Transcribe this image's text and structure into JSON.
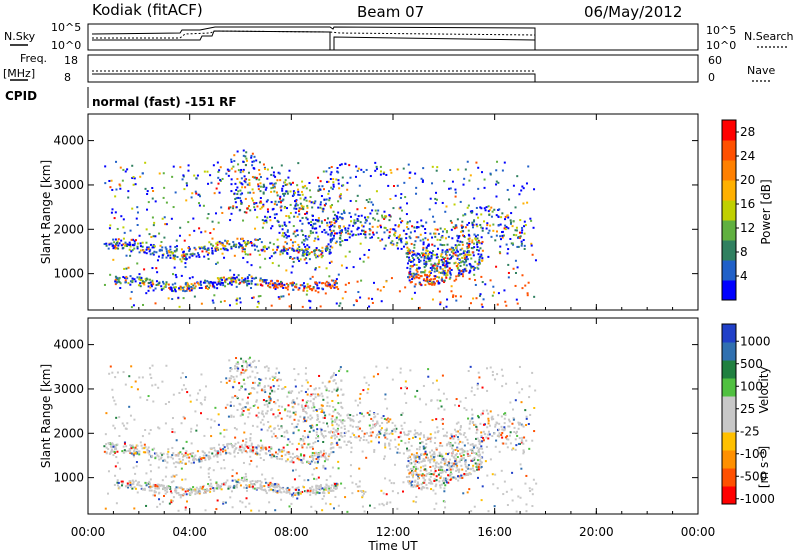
{
  "header": {
    "station": "Kodiak (fitACF)",
    "beam": "Beam 07",
    "date": "06/May/2012"
  },
  "strip_labels": {
    "nsky": "N.Sky",
    "nsky_ticks": [
      "10^5",
      "10^0"
    ],
    "nsearch": "N.Search",
    "nsearch_ticks": [
      "10^5",
      "10^0"
    ],
    "freq_line1": "Freq.",
    "freq_line2": "[MHz]",
    "freq_ticks": [
      "18",
      "8"
    ],
    "nave": "Nave",
    "nave_ticks": [
      "60",
      "0"
    ],
    "cpid": "CPID",
    "cpid_value": "normal (fast) -151 RF"
  },
  "colors": {
    "power_scale": [
      "#0000ff",
      "#2060c8",
      "#308060",
      "#60b040",
      "#c0d000",
      "#ffb000",
      "#ff8000",
      "#ff5000",
      "#ff0000"
    ],
    "velocity_scale": [
      "#ff0000",
      "#ff5000",
      "#ff9000",
      "#ffc000",
      "#c8c8c8",
      "#c8c8c8",
      "#50c040",
      "#208040",
      "#3070b0",
      "#2040c8"
    ]
  },
  "chart_data": [
    {
      "type": "heatmap",
      "quantity": "power",
      "xlabel": "",
      "ylabel": "Slant Range [km]",
      "x_ticks": [
        "00:00",
        "04:00",
        "08:00",
        "12:00",
        "16:00",
        "20:00",
        "00:00"
      ],
      "xlim_hours": [
        0,
        24
      ],
      "y_ticks": [
        1000,
        2000,
        3000,
        4000
      ],
      "ylim_km": [
        180,
        4600
      ],
      "colorbar_label": "Power [dB]",
      "colorbar_ticks": [
        "4",
        "8",
        "12",
        "16",
        "20",
        "24",
        "28"
      ],
      "colorbar_range": [
        0,
        30
      ],
      "data_extent_hours": [
        0.6,
        17.6
      ]
    },
    {
      "type": "heatmap",
      "quantity": "velocity",
      "xlabel": "Time UT",
      "ylabel": "Slant Range [km]",
      "x_ticks": [
        "00:00",
        "04:00",
        "08:00",
        "12:00",
        "16:00",
        "20:00",
        "00:00"
      ],
      "xlim_hours": [
        0,
        24
      ],
      "y_ticks": [
        1000,
        2000,
        3000,
        4000
      ],
      "ylim_km": [
        180,
        4600
      ],
      "colorbar_label": "Velocity",
      "colorbar_unit": "[m s⁻¹]",
      "colorbar_ticks": [
        "1000",
        "500",
        "100",
        "25",
        "-25",
        "-100",
        "-500",
        "-1000"
      ],
      "data_extent_hours": [
        0.6,
        17.6
      ]
    }
  ]
}
